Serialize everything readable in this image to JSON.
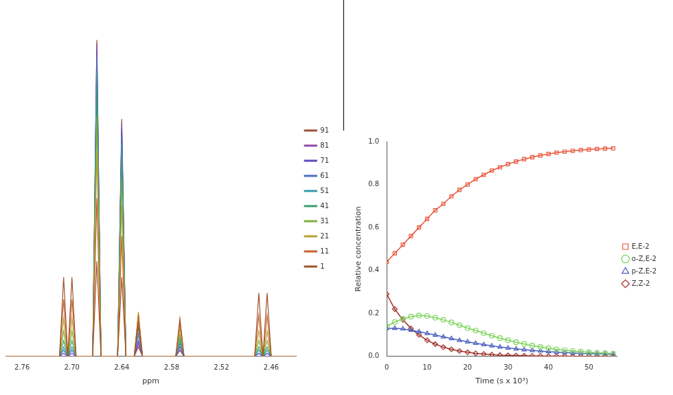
{
  "chart_data": [
    {
      "type": "line",
      "xlabel": "ppm",
      "x": [
        2.78,
        2.715,
        2.71,
        2.705,
        2.7,
        2.695,
        2.675,
        2.67,
        2.665,
        2.645,
        2.64,
        2.635,
        2.625,
        2.62,
        2.615,
        2.575,
        2.57,
        2.565,
        2.48,
        2.475,
        2.47,
        2.465,
        2.46,
        2.43
      ],
      "xlim": [
        2.78,
        2.43
      ],
      "xticks": [
        2.76,
        {
          "value": 2.7,
          "label": "2.70"
        },
        2.64,
        2.58,
        2.52,
        2.46
      ],
      "ylim": [
        0,
        1.1
      ],
      "tick_labels": "x",
      "grid": false,
      "legend": "right",
      "series": [
        {
          "name": "1",
          "color": "#a0522d",
          "values": [
            0,
            0,
            0.25,
            0,
            0.25,
            0,
            0,
            0.3,
            0,
            0,
            0.25,
            0,
            0,
            0.1,
            0,
            0,
            0.12,
            0,
            0,
            0.2,
            0,
            0.2,
            0,
            0
          ]
        },
        {
          "name": "11",
          "color": "#c8602a",
          "values": [
            0,
            0,
            0.18,
            0,
            0.18,
            0,
            0,
            0.5,
            0,
            0,
            0.38,
            0,
            0,
            0.13,
            0,
            0,
            0.11,
            0,
            0,
            0.13,
            0,
            0.13,
            0,
            0
          ]
        },
        {
          "name": "21",
          "color": "#b8a030",
          "values": [
            0,
            0,
            0.12,
            0,
            0.12,
            0,
            0,
            0.65,
            0,
            0,
            0.48,
            0,
            0,
            0.14,
            0,
            0,
            0.09,
            0,
            0,
            0.08,
            0,
            0.08,
            0,
            0
          ]
        },
        {
          "name": "31",
          "color": "#7fae3a",
          "values": [
            0,
            0,
            0.08,
            0,
            0.08,
            0,
            0,
            0.76,
            0,
            0,
            0.56,
            0,
            0,
            0.13,
            0,
            0,
            0.07,
            0,
            0,
            0.05,
            0,
            0.05,
            0,
            0
          ]
        },
        {
          "name": "41",
          "color": "#3aa06a",
          "values": [
            0,
            0,
            0.05,
            0,
            0.05,
            0,
            0,
            0.84,
            0,
            0,
            0.62,
            0,
            0,
            0.11,
            0,
            0,
            0.06,
            0,
            0,
            0.03,
            0,
            0.03,
            0,
            0
          ]
        },
        {
          "name": "51",
          "color": "#3a9aa8",
          "values": [
            0,
            0,
            0.03,
            0,
            0.03,
            0,
            0,
            0.9,
            0,
            0,
            0.67,
            0,
            0,
            0.09,
            0,
            0,
            0.05,
            0,
            0,
            0.02,
            0,
            0.02,
            0,
            0
          ]
        },
        {
          "name": "61",
          "color": "#4a6fc0",
          "values": [
            0,
            0,
            0.02,
            0,
            0.02,
            0,
            0,
            0.94,
            0,
            0,
            0.7,
            0,
            0,
            0.07,
            0,
            0,
            0.04,
            0,
            0,
            0.01,
            0,
            0.01,
            0,
            0
          ]
        },
        {
          "name": "71",
          "color": "#5a4fc0",
          "values": [
            0,
            0,
            0.01,
            0,
            0.01,
            0,
            0,
            0.97,
            0,
            0,
            0.72,
            0,
            0,
            0.05,
            0,
            0,
            0.03,
            0,
            0,
            0.01,
            0,
            0.01,
            0,
            0
          ]
        },
        {
          "name": "81",
          "color": "#8a4aa8",
          "values": [
            0,
            0,
            0,
            0,
            0,
            0,
            0,
            0.99,
            0,
            0,
            0.74,
            0,
            0,
            0.04,
            0,
            0,
            0.02,
            0,
            0,
            0,
            0,
            0,
            0,
            0
          ]
        },
        {
          "name": "91",
          "color": "#a0503a",
          "values": [
            0,
            0,
            0,
            0,
            0,
            0,
            0,
            1.0,
            0,
            0,
            0.75,
            0,
            0,
            0.03,
            0,
            0,
            0.02,
            0,
            0,
            0,
            0,
            0,
            0,
            0
          ]
        }
      ]
    },
    {
      "type": "line",
      "xlabel": "Time (s x 10³)",
      "ylabel": "Relative concentration",
      "x": [
        0,
        2,
        4,
        6,
        8,
        10,
        12,
        14,
        16,
        18,
        20,
        22,
        24,
        26,
        28,
        30,
        32,
        34,
        36,
        38,
        40,
        42,
        44,
        46,
        48,
        50,
        52,
        54,
        56
      ],
      "xlim": [
        0,
        57
      ],
      "xticks": [
        0,
        10,
        20,
        30,
        40,
        50
      ],
      "ylim": [
        0,
        1
      ],
      "yticks": [
        {
          "value": 0,
          "label": "0.0"
        },
        {
          "value": 0.2,
          "label": "0.2"
        },
        {
          "value": 0.4,
          "label": "0.4"
        },
        {
          "value": 0.6,
          "label": "0.6"
        },
        {
          "value": 0.8,
          "label": "0.8"
        },
        {
          "value": 1,
          "label": "1.0"
        }
      ],
      "grid": false,
      "legend": "right",
      "series": [
        {
          "name": "E,E-2",
          "color": "#e8553a",
          "marker": "square",
          "line_style": "solid",
          "values": [
            0.44,
            0.48,
            0.52,
            0.56,
            0.6,
            0.64,
            0.68,
            0.71,
            0.745,
            0.775,
            0.8,
            0.825,
            0.845,
            0.865,
            0.88,
            0.895,
            0.907,
            0.918,
            0.927,
            0.935,
            0.942,
            0.948,
            0.953,
            0.957,
            0.96,
            0.963,
            0.965,
            0.967,
            0.968
          ]
        },
        {
          "name": "o-Z,E-2",
          "color": "#7dd35a",
          "marker": "circle",
          "line_style": "solid",
          "values": [
            0.14,
            0.16,
            0.175,
            0.185,
            0.19,
            0.188,
            0.18,
            0.17,
            0.158,
            0.145,
            0.132,
            0.12,
            0.108,
            0.096,
            0.085,
            0.075,
            0.066,
            0.058,
            0.05,
            0.044,
            0.038,
            0.033,
            0.029,
            0.025,
            0.022,
            0.019,
            0.017,
            0.015,
            0.013
          ]
        },
        {
          "name": "p-Z,E-2",
          "color": "#4a5fc0",
          "marker": "triangle",
          "line_style": "solid",
          "values": [
            0.13,
            0.131,
            0.128,
            0.122,
            0.115,
            0.107,
            0.099,
            0.091,
            0.083,
            0.075,
            0.068,
            0.061,
            0.055,
            0.049,
            0.044,
            0.039,
            0.035,
            0.031,
            0.028,
            0.025,
            0.022,
            0.02,
            0.018,
            0.016,
            0.014,
            0.013,
            0.012,
            0.011,
            0.01
          ]
        },
        {
          "name": "Z,Z-2",
          "color": "#a0302a",
          "marker": "diamond",
          "line_style": "solid",
          "values": [
            0.29,
            0.22,
            0.17,
            0.13,
            0.1,
            0.075,
            0.057,
            0.043,
            0.033,
            0.025,
            0.019,
            0.014,
            0.011,
            0.008,
            0.006,
            0.005,
            0.004,
            0.003,
            0.002,
            0.002,
            0.001,
            0.001,
            0.001,
            0,
            0,
            0,
            0,
            0,
            0
          ]
        }
      ]
    }
  ]
}
